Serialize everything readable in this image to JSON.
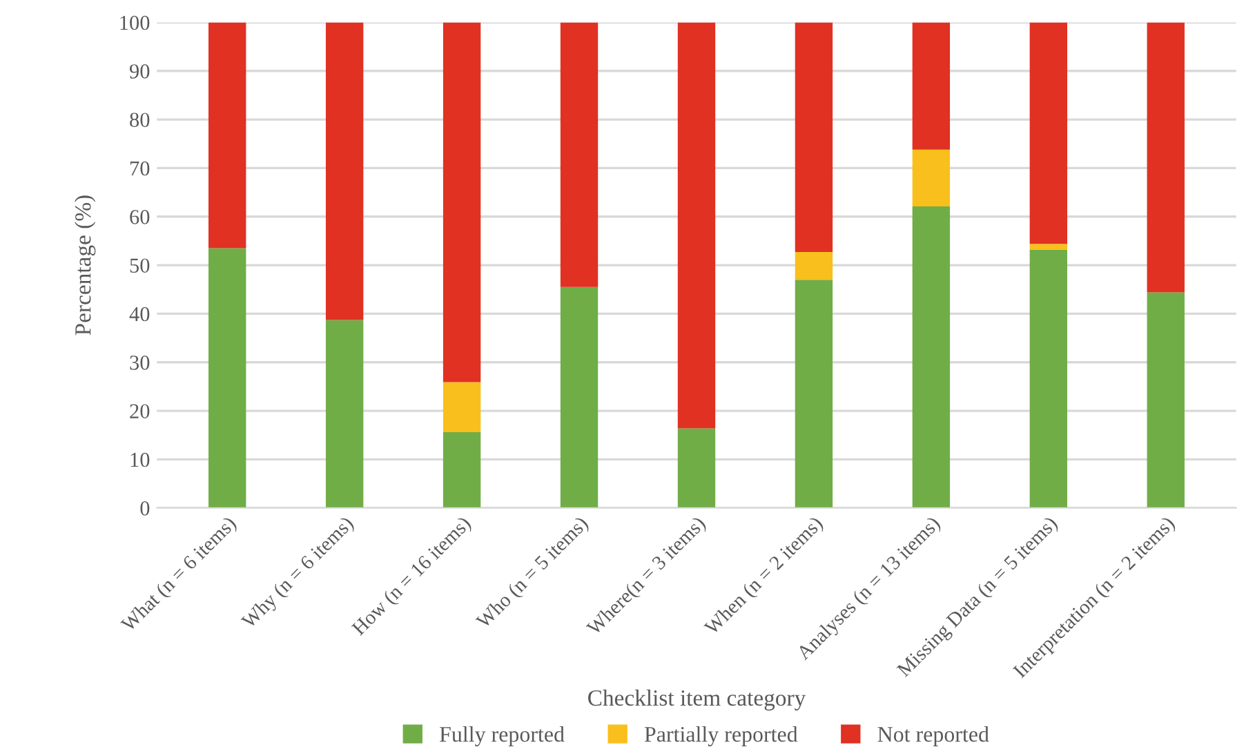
{
  "chart_data": {
    "type": "bar",
    "stacked": true,
    "xlabel": "Checklist item category",
    "ylabel": "Percentage (%)",
    "categories": [
      "What (n = 6 items)",
      "Why (n = 6 items)",
      "How (n = 16 items)",
      "Who (n = 5 items)",
      "Where(n = 3 items)",
      "When (n = 2 items)",
      "Analyses (n = 13 items)",
      "Missing Data (n = 5 items)",
      "Interpretation (n = 2 items)"
    ],
    "series": [
      {
        "name": "Fully reported",
        "color": "#70ad47",
        "values": [
          53.5,
          38.7,
          15.6,
          45.5,
          16.4,
          47.0,
          62.1,
          53.2,
          44.4
        ]
      },
      {
        "name": "Partially reported",
        "color": "#f9bf1c",
        "values": [
          0,
          0,
          10.3,
          0,
          0,
          5.7,
          11.7,
          1.2,
          0
        ]
      },
      {
        "name": "Not reported",
        "color": "#e03123",
        "values": [
          46.5,
          61.3,
          74.1,
          54.5,
          83.6,
          47.3,
          26.2,
          45.6,
          55.6
        ]
      }
    ],
    "ylim": [
      0,
      100
    ],
    "yticks": [
      0,
      10,
      20,
      30,
      40,
      50,
      60,
      70,
      80,
      90,
      100
    ],
    "grid": "y",
    "legend": "bottom"
  }
}
